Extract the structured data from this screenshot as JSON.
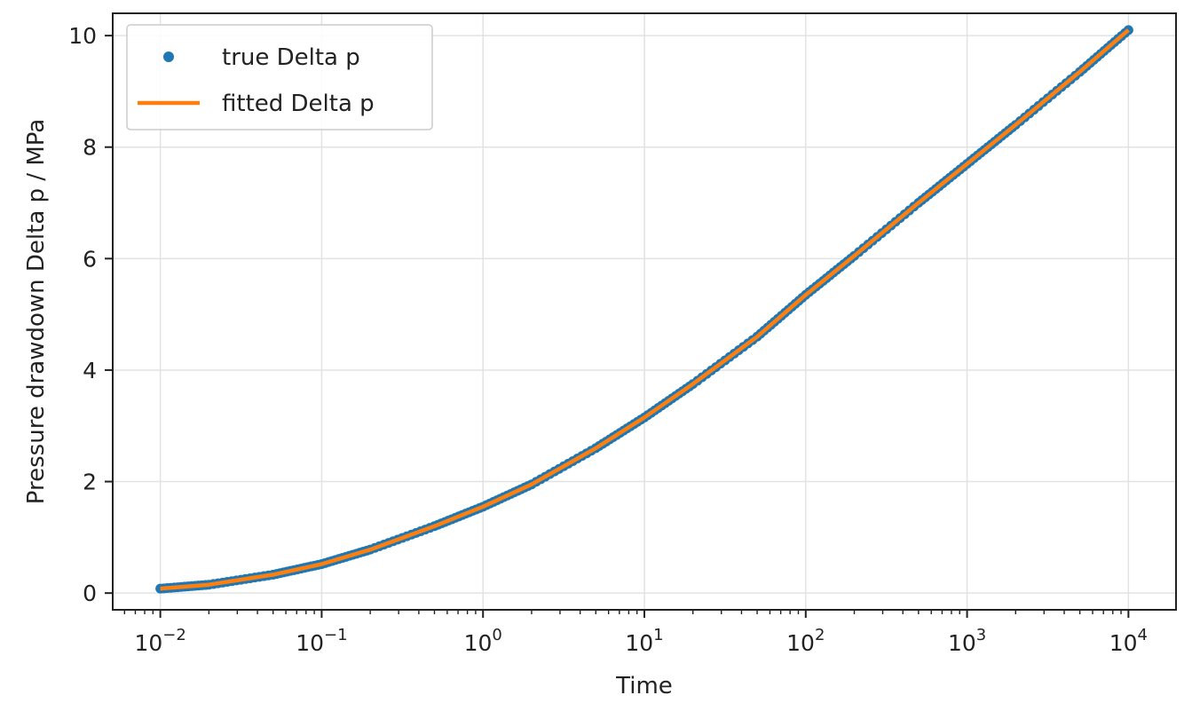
{
  "chart_data": {
    "type": "scatter",
    "title": "",
    "xlabel": "Time",
    "ylabel": "Pressure drawdown Delta p / MPa",
    "xscale": "log",
    "xlim": [
      0.01,
      10000
    ],
    "ylim": [
      -0.3,
      10.4
    ],
    "grid": true,
    "legend_position": "top-left",
    "x_tick_labels": [
      {
        "value": 0.01,
        "base": "10",
        "exp": "−2"
      },
      {
        "value": 0.1,
        "base": "10",
        "exp": "−1"
      },
      {
        "value": 1,
        "base": "10",
        "exp": "0"
      },
      {
        "value": 10,
        "base": "10",
        "exp": "1"
      },
      {
        "value": 100,
        "base": "10",
        "exp": "2"
      },
      {
        "value": 1000,
        "base": "10",
        "exp": "3"
      },
      {
        "value": 10000,
        "base": "10",
        "exp": "4"
      }
    ],
    "y_ticks": [
      0,
      2,
      4,
      6,
      8,
      10
    ],
    "y_tick_labels": [
      "0",
      "2",
      "4",
      "6",
      "8",
      "10"
    ],
    "series": [
      {
        "name": "true Delta p",
        "kind": "scatter",
        "color": "#1f77b4",
        "x": [
          0.01,
          0.02,
          0.05,
          0.1,
          0.2,
          0.5,
          1,
          2,
          5,
          10,
          20,
          50,
          100,
          200,
          500,
          1000,
          2000,
          5000,
          10000
        ],
        "y": [
          0.08,
          0.15,
          0.33,
          0.52,
          0.78,
          1.2,
          1.55,
          1.95,
          2.6,
          3.15,
          3.75,
          4.6,
          5.35,
          6.05,
          7.0,
          7.7,
          8.4,
          9.35,
          10.1
        ]
      },
      {
        "name": "fitted Delta p",
        "kind": "line",
        "color": "#ff7f0e",
        "x": [
          0.01,
          0.02,
          0.05,
          0.1,
          0.2,
          0.5,
          1,
          2,
          5,
          10,
          20,
          50,
          100,
          200,
          500,
          1000,
          2000,
          5000,
          10000
        ],
        "y": [
          0.08,
          0.15,
          0.33,
          0.52,
          0.78,
          1.2,
          1.55,
          1.95,
          2.6,
          3.15,
          3.75,
          4.6,
          5.35,
          6.05,
          7.0,
          7.7,
          8.4,
          9.35,
          10.1
        ]
      }
    ]
  }
}
